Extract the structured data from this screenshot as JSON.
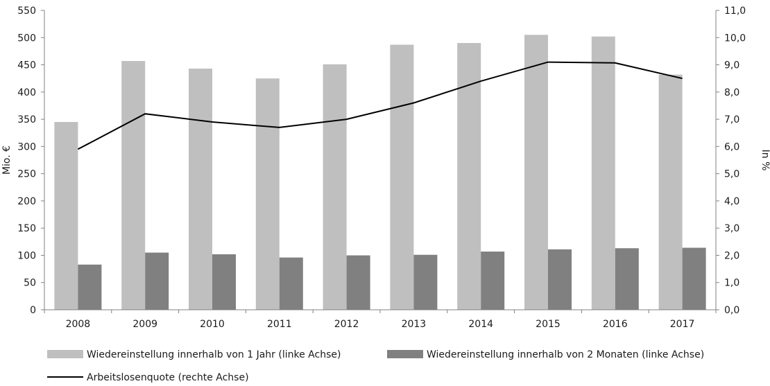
{
  "chart_data": {
    "type": "bar",
    "categories": [
      "2008",
      "2009",
      "2010",
      "2011",
      "2012",
      "2013",
      "2014",
      "2015",
      "2016",
      "2017"
    ],
    "series": [
      {
        "name": "Wiedereinstellung innerhalb von 1 Jahr (linke Achse)",
        "type": "bar",
        "axis": "left",
        "color": "#bfbfbf",
        "values": [
          345,
          457,
          443,
          425,
          451,
          487,
          490,
          505,
          502,
          432
        ]
      },
      {
        "name": "Wiedereinstellung innerhalb von 2 Monaten (linke Achse)",
        "type": "bar",
        "axis": "left",
        "color": "#808080",
        "values": [
          83,
          105,
          102,
          96,
          100,
          101,
          107,
          111,
          113,
          114
        ]
      },
      {
        "name": "Arbeitslosenquote (rechte Achse)",
        "type": "line",
        "axis": "right",
        "color": "#000000",
        "values": [
          5.9,
          7.2,
          6.9,
          6.7,
          7.0,
          7.6,
          8.4,
          9.1,
          9.07,
          8.5
        ]
      }
    ],
    "ylabel": "Mio. €",
    "y2label": "In %",
    "ylim": [
      0,
      550
    ],
    "y2lim": [
      0,
      11
    ],
    "yticks": [
      "0",
      "50",
      "100",
      "150",
      "200",
      "250",
      "300",
      "350",
      "400",
      "450",
      "500",
      "550"
    ],
    "y2ticks": [
      "0,0",
      "1,0",
      "2,0",
      "3,0",
      "4,0",
      "5,0",
      "6,0",
      "7,0",
      "8,0",
      "9,0",
      "10,0",
      "11,0"
    ],
    "grid": false,
    "legend_position": "bottom"
  }
}
